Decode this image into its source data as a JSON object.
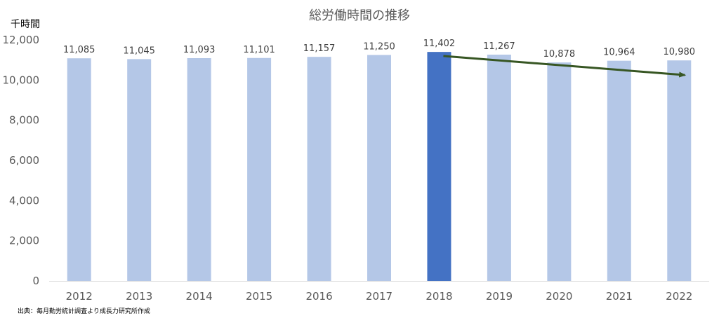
{
  "chart_data": {
    "type": "bar",
    "title": "総労働時間の推移",
    "ylabel": "千時間",
    "source": "出典：毎月勤労統計調査より成長力研究所作成",
    "categories": [
      "2012",
      "2013",
      "2014",
      "2015",
      "2016",
      "2017",
      "2018",
      "2019",
      "2020",
      "2021",
      "2022"
    ],
    "values": [
      11085,
      11045,
      11093,
      11101,
      11157,
      11250,
      11402,
      11267,
      10878,
      10964,
      10980
    ],
    "data_labels": [
      "11,085",
      "11,045",
      "11,093",
      "11,101",
      "11,157",
      "11,250",
      "11,402",
      "11,267",
      "10,878",
      "10,964",
      "10,980"
    ],
    "yticks": [
      "0",
      "2,000",
      "4,000",
      "6,000",
      "8,000",
      "10,000",
      "12,000"
    ],
    "ylim": [
      0,
      12000
    ],
    "highlight_category": "2018",
    "bar_color": "#b4c7e7",
    "highlight_color": "#4472c4",
    "trend_arrow": {
      "from": {
        "x": "2018",
        "y": 11200
      },
      "to": {
        "x": "2022",
        "y": 10250
      },
      "color": "#375623"
    },
    "grid": false
  }
}
